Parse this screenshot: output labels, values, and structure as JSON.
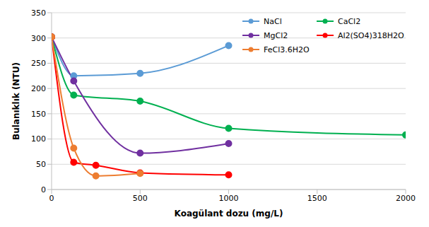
{
  "chart_data": {
    "type": "line",
    "x_label": "Koagülant dozu (mg/L)",
    "y_label": "Bulanıklık (NTU)",
    "xlim": [
      0,
      2000
    ],
    "xticks": [
      0,
      500,
      1000,
      1500,
      2000
    ],
    "ylim": [
      0,
      350
    ],
    "yticks": [
      0,
      50,
      100,
      150,
      200,
      250,
      300,
      350
    ],
    "grid": true,
    "legend": "upper right",
    "marker": "circle",
    "series": [
      {
        "name": "NaCl",
        "color": "#5b9bd5",
        "x": [
          0,
          125,
          500,
          1000
        ],
        "values": [
          302,
          225,
          230,
          285
        ]
      },
      {
        "name": "CaCl2",
        "color": "#00b050",
        "x": [
          0,
          125,
          500,
          1000,
          2000
        ],
        "values": [
          302,
          187,
          175,
          121,
          108
        ]
      },
      {
        "name": "MgCl2",
        "color": "#7030a0",
        "x": [
          0,
          125,
          500,
          1000
        ],
        "values": [
          302,
          215,
          72,
          91
        ]
      },
      {
        "name": "Al2(SO4)318H2O",
        "color": "#ff0000",
        "x": [
          0,
          125,
          250,
          500,
          1000
        ],
        "values": [
          302,
          54,
          48,
          33,
          29
        ]
      },
      {
        "name": "FeCl3.6H2O",
        "color": "#ed7d31",
        "x": [
          0,
          125,
          250,
          500
        ],
        "values": [
          302,
          82,
          27,
          32
        ]
      }
    ]
  }
}
